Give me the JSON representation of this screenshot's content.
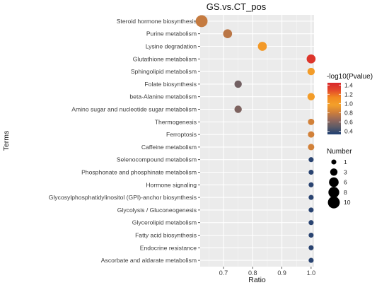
{
  "chart_data": {
    "type": "scatter",
    "title": "GS.vs.CT_pos",
    "xlabel": "Ratio",
    "ylabel": "Terms",
    "xlim": [
      0.62,
      1.01
    ],
    "xticks": [
      "0.7",
      "0.8",
      "0.9",
      "1.0"
    ],
    "xtick_values": [
      0.7,
      0.8,
      0.9,
      1.0
    ],
    "grid": true,
    "background": "#ebebeb",
    "terms": [
      "Steroid hormone biosynthesis",
      "Purine metabolism",
      "Lysine degradation",
      "Glutathione metabolism",
      "Sphingolipid metabolism",
      "Folate biosynthesis",
      "beta-Alanine metabolism",
      "Amino sugar and nucleotide sugar metabolism",
      "Thermogenesis",
      "Ferroptosis",
      "Caffeine metabolism",
      "Selenocompound metabolism",
      "Phosphonate and phosphinate metabolism",
      "Hormone signaling",
      "Glycosylphosphatidylinositol (GPI)-anchor biosynthesis",
      "Glycolysis / Gluconeogenesis",
      "Glycerolipid metabolism",
      "Fatty acid biosynthesis",
      "Endocrine resistance",
      "Ascorbate and aldarate metabolism"
    ],
    "points": [
      {
        "term": "Steroid hormone biosynthesis",
        "ratio": 0.625,
        "number": 10,
        "neg_log10_p": 0.78
      },
      {
        "term": "Purine metabolism",
        "ratio": 0.714,
        "number": 5,
        "neg_log10_p": 0.75
      },
      {
        "term": "Lysine degradation",
        "ratio": 0.833,
        "number": 5,
        "neg_log10_p": 1.02
      },
      {
        "term": "Glutathione metabolism",
        "ratio": 1.0,
        "number": 5,
        "neg_log10_p": 1.38
      },
      {
        "term": "Sphingolipid metabolism",
        "ratio": 1.0,
        "number": 3,
        "neg_log10_p": 1.0
      },
      {
        "term": "Folate biosynthesis",
        "ratio": 0.75,
        "number": 3,
        "neg_log10_p": 0.55
      },
      {
        "term": "beta-Alanine metabolism",
        "ratio": 1.0,
        "number": 3,
        "neg_log10_p": 1.0
      },
      {
        "term": "Amino sugar and nucleotide sugar metabolism",
        "ratio": 0.75,
        "number": 3,
        "neg_log10_p": 0.58
      },
      {
        "term": "Thermogenesis",
        "ratio": 1.0,
        "number": 2,
        "neg_log10_p": 0.82
      },
      {
        "term": "Ferroptosis",
        "ratio": 1.0,
        "number": 2,
        "neg_log10_p": 0.82
      },
      {
        "term": "Caffeine metabolism",
        "ratio": 1.0,
        "number": 2,
        "neg_log10_p": 0.82
      },
      {
        "term": "Selenocompound metabolism",
        "ratio": 1.0,
        "number": 1,
        "neg_log10_p": 0.36
      },
      {
        "term": "Phosphonate and phosphinate metabolism",
        "ratio": 1.0,
        "number": 1,
        "neg_log10_p": 0.36
      },
      {
        "term": "Hormone signaling",
        "ratio": 1.0,
        "number": 1,
        "neg_log10_p": 0.36
      },
      {
        "term": "Glycosylphosphatidylinositol (GPI)-anchor biosynthesis",
        "ratio": 1.0,
        "number": 1,
        "neg_log10_p": 0.36
      },
      {
        "term": "Glycolysis / Gluconeogenesis",
        "ratio": 1.0,
        "number": 1,
        "neg_log10_p": 0.36
      },
      {
        "term": "Glycerolipid metabolism",
        "ratio": 1.0,
        "number": 1,
        "neg_log10_p": 0.36
      },
      {
        "term": "Fatty acid biosynthesis",
        "ratio": 1.0,
        "number": 1,
        "neg_log10_p": 0.36
      },
      {
        "term": "Endocrine resistance",
        "ratio": 1.0,
        "number": 1,
        "neg_log10_p": 0.36
      },
      {
        "term": "Ascorbate and aldarate metabolism",
        "ratio": 1.0,
        "number": 1,
        "neg_log10_p": 0.36
      }
    ],
    "color_legend": {
      "title": "-log10(Pvalue)",
      "ticks": [
        "1.4",
        "1.2",
        "1.0",
        "0.8",
        "0.6",
        "0.4"
      ],
      "tick_values": [
        1.4,
        1.2,
        1.0,
        0.8,
        0.6,
        0.4
      ],
      "range": [
        0.33,
        1.45
      ],
      "colors": [
        "#1e3f73",
        "#5d5b66",
        "#96685a",
        "#d07f3a",
        "#f3a02a",
        "#f28a21",
        "#e3482b",
        "#d8262b"
      ],
      "position": "right"
    },
    "size_legend": {
      "title": "Number",
      "labels": [
        "1",
        "3",
        "6",
        "8",
        "10"
      ],
      "values": [
        1,
        3,
        6,
        8,
        10
      ],
      "position": "right"
    }
  }
}
